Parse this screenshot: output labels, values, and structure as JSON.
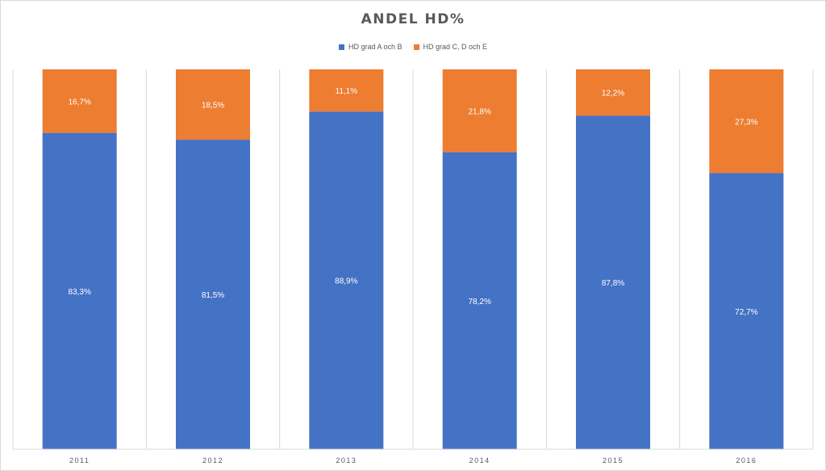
{
  "chart_data": {
    "type": "bar",
    "stacked": true,
    "title": "ANDEL HD%",
    "categories": [
      "2011",
      "2012",
      "2013",
      "2014",
      "2015",
      "2016"
    ],
    "series": [
      {
        "name": "HD grad A och B",
        "color": "#4472C4",
        "values": [
          83.3,
          81.5,
          88.9,
          78.2,
          87.8,
          72.7
        ],
        "labels": [
          "83,3%",
          "81,5%",
          "88,9%",
          "78,2%",
          "87,8%",
          "72,7%"
        ]
      },
      {
        "name": "HD grad C, D och E",
        "color": "#ED7D31",
        "values": [
          16.7,
          18.5,
          11.1,
          21.8,
          12.2,
          27.3
        ],
        "labels": [
          "16,7%",
          "18,5%",
          "11,1%",
          "21,8%",
          "12,2%",
          "27,3%"
        ]
      }
    ],
    "ylim": [
      0,
      100
    ],
    "xlabel": "",
    "ylabel": "",
    "grid": "vertical category separators",
    "legend_position": "top"
  }
}
